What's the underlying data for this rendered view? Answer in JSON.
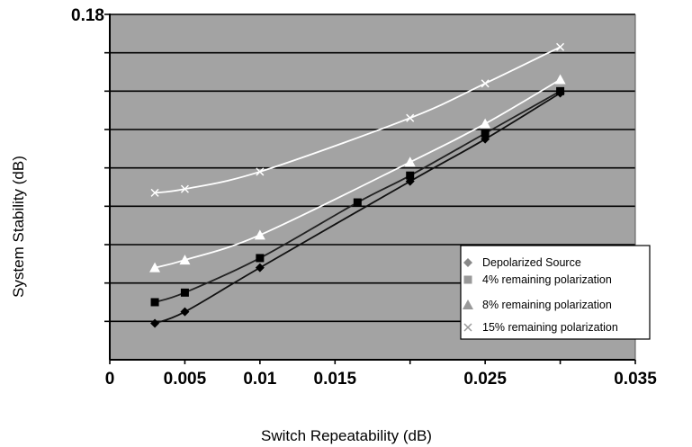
{
  "chart_data": {
    "type": "scatter",
    "xlabel": "Switch Repeatability (dB)",
    "ylabel": "System Stability (dB)",
    "xlim": [
      0,
      0.035
    ],
    "ylim": [
      0,
      0.18
    ],
    "x_tick_labels": [
      "0",
      "0.005",
      "0.01",
      "0.015",
      "0.025",
      "0.035"
    ],
    "x_tick_values": [
      0,
      0.005,
      0.01,
      0.015,
      0.025,
      0.035
    ],
    "y_tick_labels": [
      "0.18"
    ],
    "y_tick_values": [
      0.18
    ],
    "y_gridlines": [
      0.02,
      0.04,
      0.06,
      0.08,
      0.1,
      0.12,
      0.14,
      0.16
    ],
    "grid": true,
    "plot_background": "#a3a3a3",
    "legend_position": "bottom-right",
    "series": [
      {
        "name": "Depolarized Source",
        "marker": "diamond",
        "color": "#000000",
        "line": "#111111",
        "x": [
          0.003,
          0.005,
          0.01,
          0.02,
          0.025,
          0.03
        ],
        "y": [
          0.019,
          0.025,
          0.048,
          0.093,
          0.115,
          0.139
        ]
      },
      {
        "name": "4% remaining polarization",
        "marker": "square",
        "color": "#000000",
        "line": "#222222",
        "x": [
          0.003,
          0.005,
          0.01,
          0.0165,
          0.02,
          0.025,
          0.03
        ],
        "y": [
          0.03,
          0.035,
          0.053,
          0.082,
          0.096,
          0.118,
          0.14
        ]
      },
      {
        "name": "8% remaining polarization",
        "marker": "triangle",
        "color": "#ffffff",
        "line": "#ffffff",
        "x": [
          0.003,
          0.005,
          0.01,
          0.02,
          0.025,
          0.03
        ],
        "y": [
          0.048,
          0.052,
          0.065,
          0.103,
          0.123,
          0.146
        ]
      },
      {
        "name": "15% remaining polarization",
        "marker": "x",
        "color": "#ffffff",
        "line": "#ffffff",
        "x": [
          0.003,
          0.005,
          0.01,
          0.02,
          0.025,
          0.03
        ],
        "y": [
          0.087,
          0.089,
          0.098,
          0.126,
          0.144,
          0.163
        ]
      }
    ]
  }
}
